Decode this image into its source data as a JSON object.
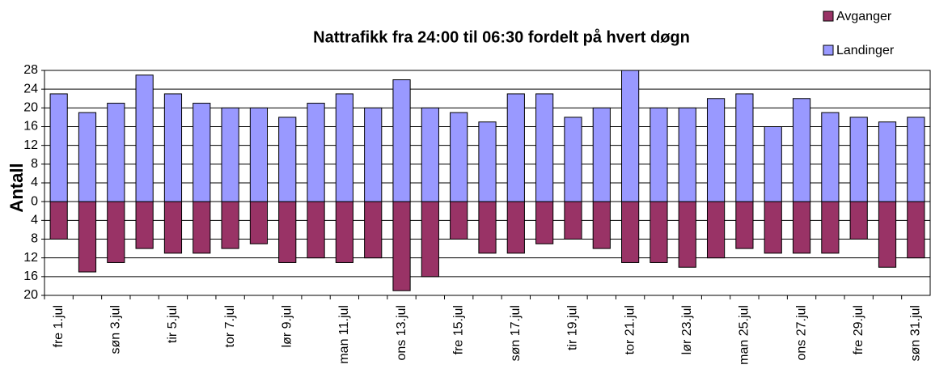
{
  "chart_data": {
    "type": "bar",
    "title": "Nattrafikk fra 24:00 til 06:30 fordelt på hvert døgn",
    "y_label": "Antall",
    "categories": [
      "fre 1.jul",
      null,
      "søn 3.jul",
      null,
      "tir 5.jul",
      null,
      "tor 7.jul",
      null,
      "lør 9.jul",
      null,
      "man 11.jul",
      null,
      "ons 13.jul",
      null,
      "fre 15.jul",
      null,
      "søn 17.jul",
      null,
      "tir 19.jul",
      null,
      "tor 21.jul",
      null,
      "lør 23.jul",
      null,
      "man 25.jul",
      null,
      "ons 27.jul",
      null,
      "fre 29.jul",
      null,
      "søn 31.jul"
    ],
    "series": [
      {
        "name": "Avganger",
        "color": "#993366",
        "values": [
          -8,
          -15,
          -13,
          -10,
          -11,
          -11,
          -10,
          -9,
          -13,
          -12,
          -13,
          -12,
          -19,
          -16,
          -8,
          -11,
          -11,
          -9,
          -8,
          -10,
          -13,
          -13,
          -14,
          -12,
          -10,
          -11,
          -11,
          -11,
          -8,
          -14,
          -12
        ]
      },
      {
        "name": "Landinger",
        "color": "#9999ff",
        "values": [
          23,
          19,
          21,
          27,
          23,
          21,
          20,
          20,
          18,
          21,
          23,
          20,
          26,
          20,
          19,
          17,
          23,
          23,
          18,
          20,
          28,
          20,
          20,
          22,
          23,
          16,
          22,
          19,
          18,
          17,
          18
        ]
      }
    ],
    "ylim": [
      -20,
      28
    ],
    "yticks": [
      {
        "value": -20,
        "label": "20"
      },
      {
        "value": -16,
        "label": "16"
      },
      {
        "value": -12,
        "label": "12"
      },
      {
        "value": -8,
        "label": "8"
      },
      {
        "value": -4,
        "label": "4"
      },
      0,
      4,
      8,
      12,
      16,
      20,
      24,
      28
    ],
    "grid": true,
    "legend": "top-right"
  }
}
